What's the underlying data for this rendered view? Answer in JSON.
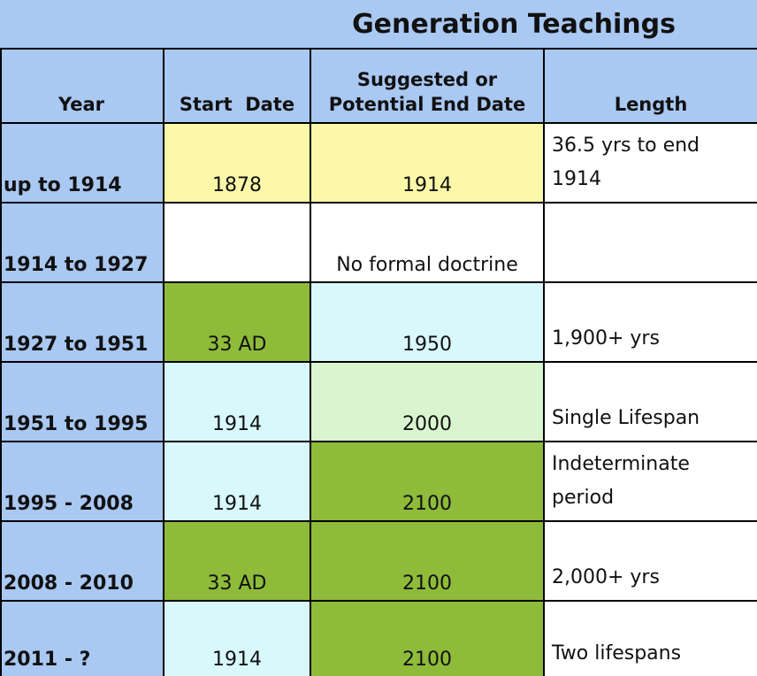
{
  "title": "Generation Teachings",
  "headers": {
    "year": "Year",
    "start": "Start  Date",
    "end_line1": "Suggested or",
    "end_line2": "Potential End Date",
    "length": "Length"
  },
  "rows": [
    {
      "year": "up to 1914",
      "start": "1878",
      "end": "1914",
      "length_line1": "36.5 yrs to end",
      "length_line2": "1914"
    },
    {
      "year": "1914 to 1927",
      "start": "",
      "end": "No formal doctrine",
      "length_line1": "",
      "length_line2": ""
    },
    {
      "year": "1927 to 1951",
      "start": "33 AD",
      "end": "1950",
      "length_line1": "",
      "length_line2": "1,900+ yrs"
    },
    {
      "year": "1951 to 1995",
      "start": "1914",
      "end": "2000",
      "length_line1": "",
      "length_line2": "Single Lifespan"
    },
    {
      "year": "1995 - 2008",
      "start": "1914",
      "end": "2100",
      "length_line1": "Indeterminate",
      "length_line2": "period"
    },
    {
      "year": "2008 - 2010",
      "start": "33 AD",
      "end": "2100",
      "length_line1": "",
      "length_line2": "2,000+ yrs"
    },
    {
      "year": "2011 - ?",
      "start": "1914",
      "end": "2100",
      "length_line1": "",
      "length_line2": "Two lifespans"
    }
  ],
  "colors": {
    "header_blue": "#a9c8f2",
    "year_blue": "#a9c8f2",
    "yellow": "#fbf8a8",
    "green": "#8ebb3a",
    "light_cyan": "#d8f8fc",
    "light_green": "#d9f5d0",
    "white": "#ffffff"
  }
}
